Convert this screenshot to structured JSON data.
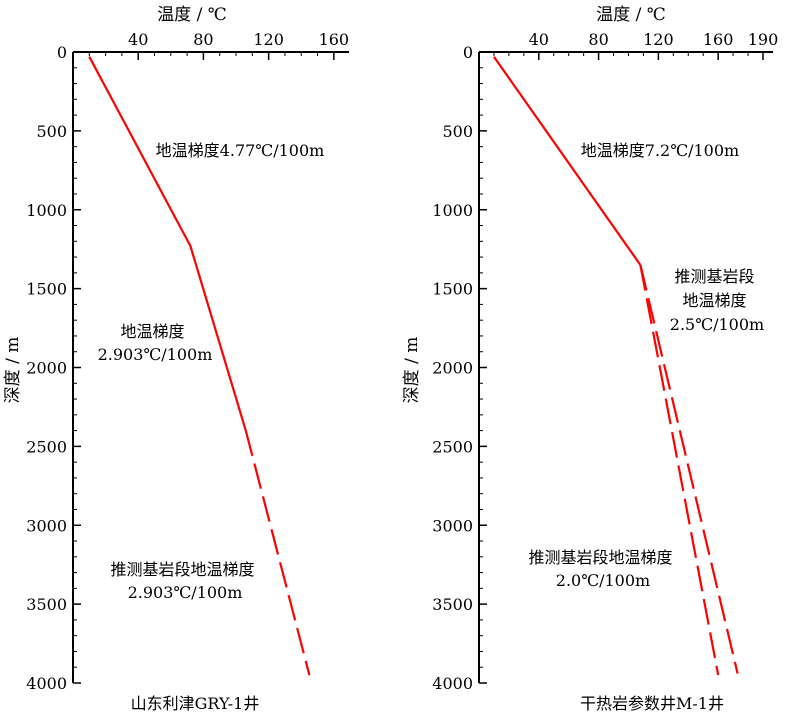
{
  "chart_data": [
    {
      "type": "line",
      "title": "",
      "xlabel": "温度 / ℃",
      "ylabel": "深度 / m",
      "x_ticks": [
        40,
        80,
        120,
        160
      ],
      "y_ticks": [
        0,
        500,
        1000,
        1500,
        2000,
        2500,
        3000,
        3500,
        4000
      ],
      "xlim": [
        0,
        170
      ],
      "ylim": [
        0,
        4000
      ],
      "x_axis_position": "top",
      "y_axis_inverted": true,
      "grid": false,
      "line_color": "#ff0000",
      "well_label": "山东利津GRY-1井",
      "series": [
        {
          "style": "solid",
          "points": [
            [
              10,
              30
            ],
            [
              72,
              1230
            ],
            [
              106,
              2400
            ]
          ]
        },
        {
          "style": "dashed",
          "points": [
            [
              106,
              2400
            ],
            [
              145,
              3950
            ]
          ]
        }
      ],
      "annotations": [
        {
          "lines": [
            "地温梯度4.77℃/100m"
          ]
        },
        {
          "lines": [
            "地温梯度",
            "2.903℃/100m"
          ]
        },
        {
          "lines": [
            "推测基岩段地温梯度",
            "2.903℃/100m"
          ]
        }
      ]
    },
    {
      "type": "line",
      "title": "",
      "xlabel": "温度 / ℃",
      "ylabel": "深度 / m",
      "x_ticks": [
        40,
        80,
        120,
        160,
        190
      ],
      "y_ticks": [
        0,
        500,
        1000,
        1500,
        2000,
        2500,
        3000,
        3500,
        4000
      ],
      "xlim": [
        0,
        190
      ],
      "ylim": [
        0,
        4000
      ],
      "x_axis_position": "top",
      "y_axis_inverted": true,
      "grid": false,
      "line_color": "#ff0000",
      "well_label": "干热岩参数井M-1井",
      "series": [
        {
          "style": "solid",
          "points": [
            [
              10,
              30
            ],
            [
              108,
              1350
            ]
          ]
        },
        {
          "style": "dashed",
          "points": [
            [
              108,
              1350
            ],
            [
              173,
              3940
            ]
          ]
        },
        {
          "style": "dashed",
          "points": [
            [
              108,
              1350
            ],
            [
              160,
              3950
            ]
          ]
        }
      ],
      "annotations": [
        {
          "lines": [
            "地温梯度7.2℃/100m"
          ]
        },
        {
          "lines": [
            "推测基岩段",
            "地温梯度",
            "2.5℃/100m"
          ]
        },
        {
          "lines": [
            "推测基岩段地温梯度",
            "2.0℃/100m"
          ]
        }
      ]
    }
  ]
}
